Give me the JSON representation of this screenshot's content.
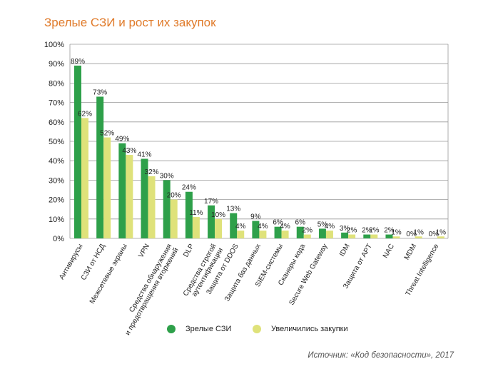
{
  "chart_data": {
    "type": "bar",
    "title": "Зрелые СЗИ и рост их закупок",
    "xlabel": "",
    "ylabel": "",
    "ylim": [
      0,
      100
    ],
    "yticks": [
      "0%",
      "10%",
      "20%",
      "30%",
      "40%",
      "50%",
      "60%",
      "70%",
      "80%",
      "90%",
      "100%"
    ],
    "grid": true,
    "categories": [
      [
        "Антивирусы"
      ],
      [
        "СЗИ от НСД"
      ],
      [
        "Межсетевые экраны"
      ],
      [
        "VPN"
      ],
      [
        "Средства обнаружения",
        "и предотвращения вторжений"
      ],
      [
        "DLP"
      ],
      [
        "Средства строгой",
        "аутентификации"
      ],
      [
        "Защита от DDOS"
      ],
      [
        "Защита баз данных"
      ],
      [
        "SIEM-системы"
      ],
      [
        "Сканеры кода"
      ],
      [
        "Secure Web Gateway"
      ],
      [
        "IDM"
      ],
      [
        "Защита от APT"
      ],
      [
        "NAC"
      ],
      [
        "MDM"
      ],
      [
        "Threat Intelligence"
      ]
    ],
    "series": [
      {
        "name": "Зрелые СЗИ",
        "color": "#2ea04a",
        "values": [
          89,
          73,
          49,
          41,
          30,
          24,
          17,
          13,
          9,
          6,
          6,
          5,
          3,
          2,
          2,
          0,
          0
        ]
      },
      {
        "name": "Увеличились закупки",
        "color": "#dfe27a",
        "values": [
          62,
          52,
          43,
          32,
          20,
          11,
          10,
          4,
          4,
          4,
          2,
          4,
          2,
          2,
          1,
          1,
          1
        ]
      }
    ],
    "legend_position": "bottom"
  },
  "source": "Источник: «Код безопасности», 2017"
}
